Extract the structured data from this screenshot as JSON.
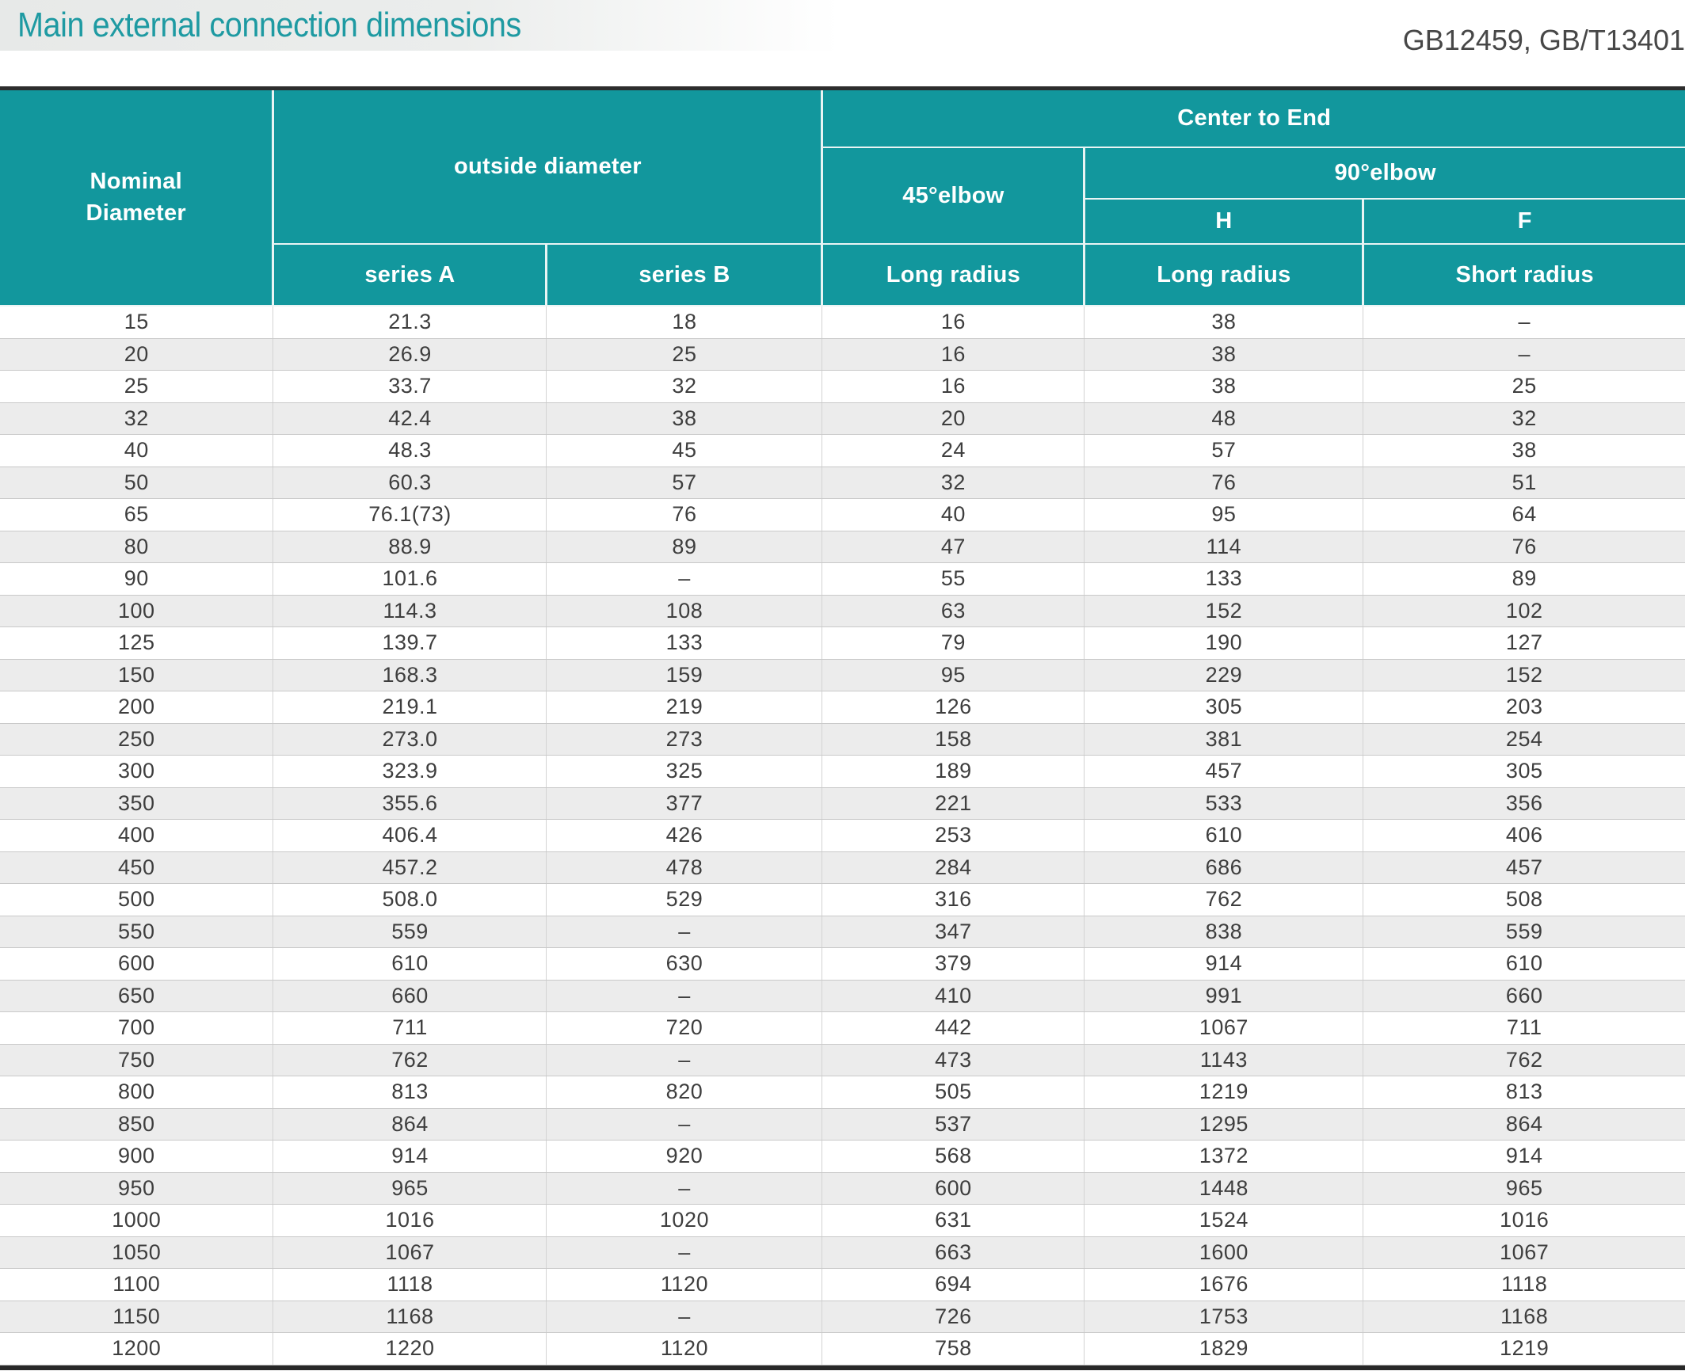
{
  "page": {
    "title": "Main external connection dimensions",
    "standards_ref": "GB12459, GB/T13401"
  },
  "colors": {
    "accent_teal": "#12979d",
    "title_text_teal": "#1e9aa2",
    "header_text": "#ffffff",
    "body_text": "#3e3e3e",
    "stripe_gray": "#ececec",
    "border_dark": "#2d2d2d",
    "grid_line": "#d3d3d3"
  },
  "table": {
    "header": {
      "nominal_diameter": "Nominal\nDiameter",
      "outside_diameter": "outside diameter",
      "center_to_end": "Center to End",
      "elbow_45": "45°elbow",
      "elbow_90": "90°elbow",
      "h": "H",
      "f": "F",
      "series_a": "series A",
      "series_b": "series B",
      "long_radius_45": "Long radius",
      "long_radius_h": "Long radius",
      "short_radius_f": "Short radius"
    },
    "rows": [
      [
        "15",
        "21.3",
        "18",
        "16",
        "38",
        "–"
      ],
      [
        "20",
        "26.9",
        "25",
        "16",
        "38",
        "–"
      ],
      [
        "25",
        "33.7",
        "32",
        "16",
        "38",
        "25"
      ],
      [
        "32",
        "42.4",
        "38",
        "20",
        "48",
        "32"
      ],
      [
        "40",
        "48.3",
        "45",
        "24",
        "57",
        "38"
      ],
      [
        "50",
        "60.3",
        "57",
        "32",
        "76",
        "51"
      ],
      [
        "65",
        "76.1(73)",
        "76",
        "40",
        "95",
        "64"
      ],
      [
        "80",
        "88.9",
        "89",
        "47",
        "114",
        "76"
      ],
      [
        "90",
        "101.6",
        "–",
        "55",
        "133",
        "89"
      ],
      [
        "100",
        "114.3",
        "108",
        "63",
        "152",
        "102"
      ],
      [
        "125",
        "139.7",
        "133",
        "79",
        "190",
        "127"
      ],
      [
        "150",
        "168.3",
        "159",
        "95",
        "229",
        "152"
      ],
      [
        "200",
        "219.1",
        "219",
        "126",
        "305",
        "203"
      ],
      [
        "250",
        "273.0",
        "273",
        "158",
        "381",
        "254"
      ],
      [
        "300",
        "323.9",
        "325",
        "189",
        "457",
        "305"
      ],
      [
        "350",
        "355.6",
        "377",
        "221",
        "533",
        "356"
      ],
      [
        "400",
        "406.4",
        "426",
        "253",
        "610",
        "406"
      ],
      [
        "450",
        "457.2",
        "478",
        "284",
        "686",
        "457"
      ],
      [
        "500",
        "508.0",
        "529",
        "316",
        "762",
        "508"
      ],
      [
        "550",
        "559",
        "–",
        "347",
        "838",
        "559"
      ],
      [
        "600",
        "610",
        "630",
        "379",
        "914",
        "610"
      ],
      [
        "650",
        "660",
        "–",
        "410",
        "991",
        "660"
      ],
      [
        "700",
        "711",
        "720",
        "442",
        "1067",
        "711"
      ],
      [
        "750",
        "762",
        "–",
        "473",
        "1143",
        "762"
      ],
      [
        "800",
        "813",
        "820",
        "505",
        "1219",
        "813"
      ],
      [
        "850",
        "864",
        "–",
        "537",
        "1295",
        "864"
      ],
      [
        "900",
        "914",
        "920",
        "568",
        "1372",
        "914"
      ],
      [
        "950",
        "965",
        "–",
        "600",
        "1448",
        "965"
      ],
      [
        "1000",
        "1016",
        "1020",
        "631",
        "1524",
        "1016"
      ],
      [
        "1050",
        "1067",
        "–",
        "663",
        "1600",
        "1067"
      ],
      [
        "1100",
        "1118",
        "1120",
        "694",
        "1676",
        "1118"
      ],
      [
        "1150",
        "1168",
        "–",
        "726",
        "1753",
        "1168"
      ],
      [
        "1200",
        "1220",
        "1120",
        "758",
        "1829",
        "1219"
      ]
    ]
  }
}
